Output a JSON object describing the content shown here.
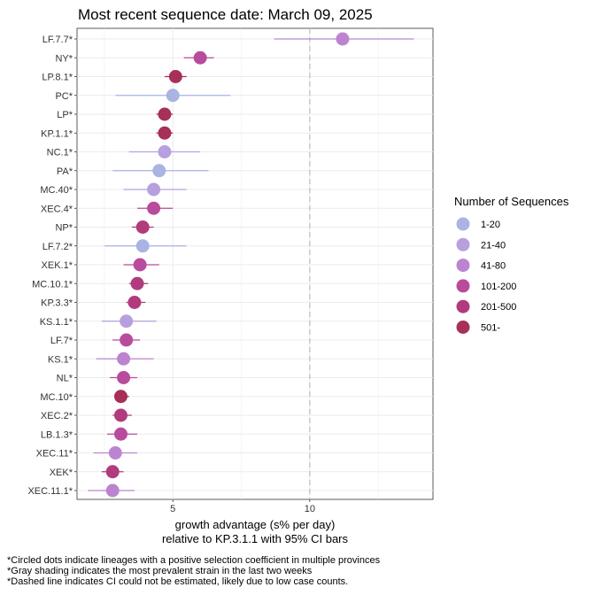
{
  "chart_data": {
    "type": "scatter",
    "title": "Most recent sequence date: March 09, 2025",
    "xlabel": "growth advantage (s% per day)",
    "xlabel2": "relative to  KP.3.1.1  with 95% CI bars",
    "xlim": [
      1.5,
      14.5
    ],
    "xticks": [
      5,
      10
    ],
    "dashed_line_x": 10,
    "grid": true,
    "legend": {
      "title": "Number of Sequences",
      "placement": "right",
      "items": [
        {
          "label": "1-20",
          "color": "#a9b4e3"
        },
        {
          "label": "21-40",
          "color": "#b7a0df"
        },
        {
          "label": "41-80",
          "color": "#bc84d0"
        },
        {
          "label": "101-200",
          "color": "#b94b9c"
        },
        {
          "label": "201-500",
          "color": "#b13b7d"
        },
        {
          "label": "501-",
          "color": "#a73056"
        }
      ]
    },
    "points": [
      {
        "lineage": "LF.7.7*",
        "value": 11.2,
        "lo": 8.7,
        "hi": 13.8,
        "group": 2
      },
      {
        "lineage": "NY*",
        "value": 6.0,
        "lo": 5.4,
        "hi": 6.5,
        "group": 3
      },
      {
        "lineage": "LP.8.1*",
        "value": 5.1,
        "lo": 4.7,
        "hi": 5.5,
        "group": 5
      },
      {
        "lineage": "PC*",
        "value": 5.0,
        "lo": 2.9,
        "hi": 7.1,
        "group": 0
      },
      {
        "lineage": "LP*",
        "value": 4.7,
        "lo": 4.4,
        "hi": 5.0,
        "group": 5
      },
      {
        "lineage": "KP.1.1*",
        "value": 4.7,
        "lo": 4.4,
        "hi": 5.0,
        "group": 5
      },
      {
        "lineage": "NC.1*",
        "value": 4.7,
        "lo": 3.4,
        "hi": 6.0,
        "group": 1
      },
      {
        "lineage": "PA*",
        "value": 4.5,
        "lo": 2.8,
        "hi": 6.3,
        "group": 0
      },
      {
        "lineage": "MC.40*",
        "value": 4.3,
        "lo": 3.2,
        "hi": 5.5,
        "group": 1
      },
      {
        "lineage": "XEC.4*",
        "value": 4.3,
        "lo": 3.7,
        "hi": 5.0,
        "group": 3
      },
      {
        "lineage": "NP*",
        "value": 3.9,
        "lo": 3.5,
        "hi": 4.3,
        "group": 4
      },
      {
        "lineage": "LF.7.2*",
        "value": 3.9,
        "lo": 2.5,
        "hi": 5.5,
        "group": 0
      },
      {
        "lineage": "XEK.1*",
        "value": 3.8,
        "lo": 3.2,
        "hi": 4.5,
        "group": 3
      },
      {
        "lineage": "MC.10.1*",
        "value": 3.7,
        "lo": 3.4,
        "hi": 4.1,
        "group": 4
      },
      {
        "lineage": "KP.3.3*",
        "value": 3.6,
        "lo": 3.3,
        "hi": 4.0,
        "group": 4
      },
      {
        "lineage": "KS.1.1*",
        "value": 3.3,
        "lo": 2.4,
        "hi": 4.4,
        "group": 1
      },
      {
        "lineage": "LF.7*",
        "value": 3.3,
        "lo": 2.8,
        "hi": 3.8,
        "group": 3
      },
      {
        "lineage": "KS.1*",
        "value": 3.2,
        "lo": 2.2,
        "hi": 4.3,
        "group": 2
      },
      {
        "lineage": "NL*",
        "value": 3.2,
        "lo": 2.7,
        "hi": 3.7,
        "group": 3
      },
      {
        "lineage": "MC.10*",
        "value": 3.1,
        "lo": 2.9,
        "hi": 3.4,
        "group": 5
      },
      {
        "lineage": "XEC.2*",
        "value": 3.1,
        "lo": 2.8,
        "hi": 3.5,
        "group": 4
      },
      {
        "lineage": "LB.1.3*",
        "value": 3.1,
        "lo": 2.6,
        "hi": 3.7,
        "group": 3
      },
      {
        "lineage": "XEC.11*",
        "value": 2.9,
        "lo": 2.1,
        "hi": 3.7,
        "group": 2
      },
      {
        "lineage": "XEK*",
        "value": 2.8,
        "lo": 2.4,
        "hi": 3.2,
        "group": 4
      },
      {
        "lineage": "XEC.11.1*",
        "value": 2.8,
        "lo": 1.9,
        "hi": 3.6,
        "group": 2
      }
    ]
  },
  "footnotes": [
    "*Circled dots indicate lineages with a positive selection coefficient in multiple provinces",
    "*Gray shading indicates the most prevalent strain in the last two weeks",
    "*Dashed line indicates CI could not be estimated, likely due to low case counts."
  ]
}
